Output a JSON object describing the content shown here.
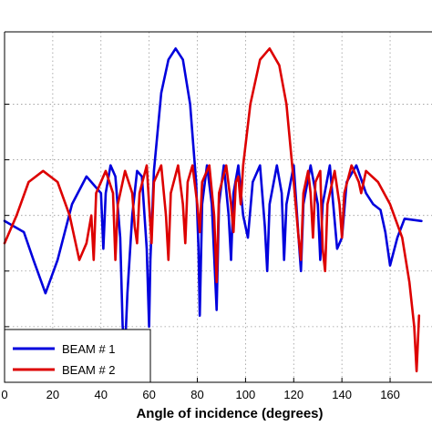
{
  "chart_data": {
    "type": "line",
    "xlabel": "Angle of incidence (degrees)",
    "xlim": [
      0,
      180
    ],
    "xticks": [
      0,
      20,
      40,
      60,
      80,
      100,
      120,
      140,
      160
    ],
    "xtick_labels": [
      "0",
      "20",
      "40",
      "60",
      "80",
      "100",
      "120",
      "140",
      "160"
    ],
    "grid": true,
    "legend_placement": "bottom-left",
    "series": [
      {
        "name": "BEAM # 1",
        "color": "#0000dd",
        "points": [
          [
            0,
            -15.5
          ],
          [
            8,
            -16.5
          ],
          [
            12,
            -19
          ],
          [
            17,
            -22
          ],
          [
            22,
            -19
          ],
          [
            28,
            -14
          ],
          [
            34,
            -11.5
          ],
          [
            40,
            -13
          ],
          [
            41,
            -18
          ],
          [
            42,
            -13
          ],
          [
            44,
            -10.5
          ],
          [
            46,
            -11.5
          ],
          [
            48,
            -17
          ],
          [
            49,
            -25
          ],
          [
            50,
            -27
          ],
          [
            51,
            -22
          ],
          [
            53,
            -15
          ],
          [
            55,
            -11
          ],
          [
            57,
            -11.5
          ],
          [
            59,
            -18
          ],
          [
            60,
            -25
          ],
          [
            60.5,
            -19
          ],
          [
            62,
            -11
          ],
          [
            65,
            -4
          ],
          [
            68,
            -1
          ],
          [
            71,
            0
          ],
          [
            74,
            -1
          ],
          [
            77,
            -5
          ],
          [
            79.5,
            -12
          ],
          [
            80.5,
            -18
          ],
          [
            81,
            -24
          ],
          [
            82,
            -14
          ],
          [
            84,
            -10.5
          ],
          [
            86,
            -14
          ],
          [
            88,
            -23.5
          ],
          [
            89,
            -14
          ],
          [
            91,
            -10.5
          ],
          [
            93,
            -15
          ],
          [
            94,
            -19
          ],
          [
            95,
            -13
          ],
          [
            97,
            -10.5
          ],
          [
            99,
            -15
          ],
          [
            101,
            -17
          ],
          [
            103,
            -12
          ],
          [
            106,
            -10.5
          ],
          [
            108,
            -16
          ],
          [
            109,
            -20
          ],
          [
            110,
            -14
          ],
          [
            113,
            -10.5
          ],
          [
            115,
            -13
          ],
          [
            116,
            -19
          ],
          [
            117,
            -14
          ],
          [
            120,
            -10.5
          ],
          [
            122,
            -17
          ],
          [
            123,
            -20
          ],
          [
            124,
            -14
          ],
          [
            127,
            -10.5
          ],
          [
            130,
            -14
          ],
          [
            131,
            -19
          ],
          [
            132,
            -14
          ],
          [
            135,
            -10.5
          ],
          [
            138,
            -18
          ],
          [
            140,
            -17
          ],
          [
            142,
            -12
          ],
          [
            146,
            -10.5
          ],
          [
            150,
            -13
          ],
          [
            153,
            -14
          ],
          [
            156,
            -14.5
          ],
          [
            158,
            -16.5
          ],
          [
            160,
            -19.5
          ],
          [
            163,
            -17
          ],
          [
            166,
            -15.3
          ],
          [
            173,
            -15.5
          ]
        ]
      },
      {
        "name": "BEAM # 2",
        "color": "#dd0000",
        "points": [
          [
            0,
            -17.5
          ],
          [
            5,
            -15
          ],
          [
            10,
            -12
          ],
          [
            16,
            -11
          ],
          [
            22,
            -12
          ],
          [
            27,
            -15
          ],
          [
            31,
            -19
          ],
          [
            34,
            -17.5
          ],
          [
            36,
            -15
          ],
          [
            37,
            -19
          ],
          [
            38,
            -13
          ],
          [
            42,
            -11
          ],
          [
            45,
            -13
          ],
          [
            46,
            -19
          ],
          [
            47,
            -14
          ],
          [
            50,
            -11
          ],
          [
            53,
            -13
          ],
          [
            54,
            -16
          ],
          [
            55,
            -17.5
          ],
          [
            56,
            -13
          ],
          [
            59,
            -10.5
          ],
          [
            60,
            -14
          ],
          [
            61,
            -17.5
          ],
          [
            62,
            -12
          ],
          [
            65,
            -10.5
          ],
          [
            67,
            -15
          ],
          [
            68,
            -19
          ],
          [
            69,
            -13
          ],
          [
            72,
            -10.5
          ],
          [
            74,
            -14
          ],
          [
            75,
            -17.5
          ],
          [
            76,
            -12
          ],
          [
            78,
            -10.5
          ],
          [
            80,
            -14
          ],
          [
            81,
            -16.5
          ],
          [
            82,
            -12
          ],
          [
            85,
            -10.5
          ],
          [
            87,
            -15
          ],
          [
            88,
            -21
          ],
          [
            89,
            -13
          ],
          [
            92,
            -10.5
          ],
          [
            94,
            -14
          ],
          [
            95,
            -16.5
          ],
          [
            96,
            -12
          ],
          [
            97,
            -11.5
          ],
          [
            98,
            -14
          ],
          [
            99,
            -10.5
          ],
          [
            102,
            -5
          ],
          [
            106,
            -1
          ],
          [
            110,
            0
          ],
          [
            114,
            -1.5
          ],
          [
            117,
            -5
          ],
          [
            120,
            -12
          ],
          [
            122,
            -17
          ],
          [
            123,
            -19
          ],
          [
            124,
            -13
          ],
          [
            126,
            -11
          ],
          [
            127,
            -13
          ],
          [
            128,
            -17
          ],
          [
            129,
            -12
          ],
          [
            131,
            -11
          ],
          [
            132,
            -18
          ],
          [
            133,
            -20
          ],
          [
            134,
            -14
          ],
          [
            137,
            -11
          ],
          [
            139,
            -14
          ],
          [
            140,
            -17
          ],
          [
            141,
            -13
          ],
          [
            144,
            -10.5
          ],
          [
            147,
            -12
          ],
          [
            148,
            -13
          ],
          [
            150,
            -11
          ],
          [
            155,
            -12
          ],
          [
            160,
            -14
          ],
          [
            165,
            -17
          ],
          [
            168,
            -21
          ],
          [
            170,
            -25
          ],
          [
            171,
            -29
          ],
          [
            172,
            -24
          ]
        ]
      }
    ],
    "ylim": [
      -30,
      1.5
    ],
    "ygrid_values": [
      -25,
      -20,
      -15,
      -10,
      -5
    ]
  }
}
